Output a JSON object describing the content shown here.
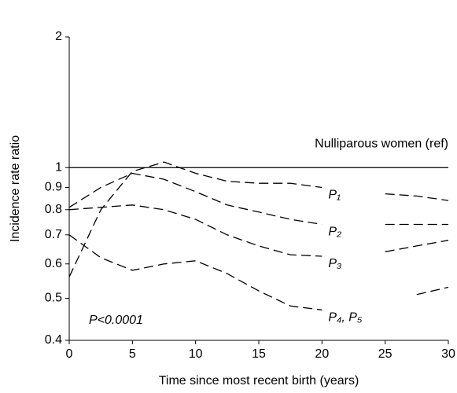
{
  "chart_data": {
    "type": "line",
    "x_label": "Time since most recent birth (years)",
    "y_label": "Incidence rate ratio",
    "log_y": true,
    "xlim": [
      0,
      30
    ],
    "xticks": [
      0,
      5,
      10,
      15,
      20,
      25,
      30
    ],
    "ylim": [
      0.4,
      2
    ],
    "yticks": [
      0.4,
      0.5,
      0.6,
      0.7,
      0.8,
      0.9,
      1,
      2
    ],
    "reference": {
      "value": 1,
      "label": "Nulliparous women (ref)"
    },
    "annotation": "P<0.0001",
    "x": [
      0,
      2.5,
      5,
      7.5,
      10,
      12.5,
      15,
      17.5,
      20,
      22.5,
      25,
      27.5,
      30
    ],
    "series": [
      {
        "name": "P₁",
        "color": "#000000",
        "values": [
          0.56,
          0.8,
          0.98,
          1.03,
          0.97,
          0.93,
          0.92,
          0.92,
          0.9,
          null,
          0.87,
          0.86,
          0.84
        ]
      },
      {
        "name": "P₂",
        "color": "#000000",
        "values": [
          0.81,
          0.9,
          0.97,
          0.94,
          0.88,
          0.82,
          0.79,
          0.76,
          0.74,
          null,
          0.74,
          0.74,
          0.74
        ]
      },
      {
        "name": "P₃",
        "color": "#000000",
        "values": [
          0.8,
          0.81,
          0.82,
          0.8,
          0.76,
          0.7,
          0.66,
          0.63,
          0.625,
          null,
          0.64,
          0.66,
          0.68
        ]
      },
      {
        "name": "P₄, P₅",
        "color": "#000000",
        "values": [
          0.7,
          0.62,
          0.58,
          0.6,
          0.61,
          0.57,
          0.52,
          0.48,
          0.47,
          null,
          null,
          0.51,
          0.53
        ]
      }
    ]
  }
}
